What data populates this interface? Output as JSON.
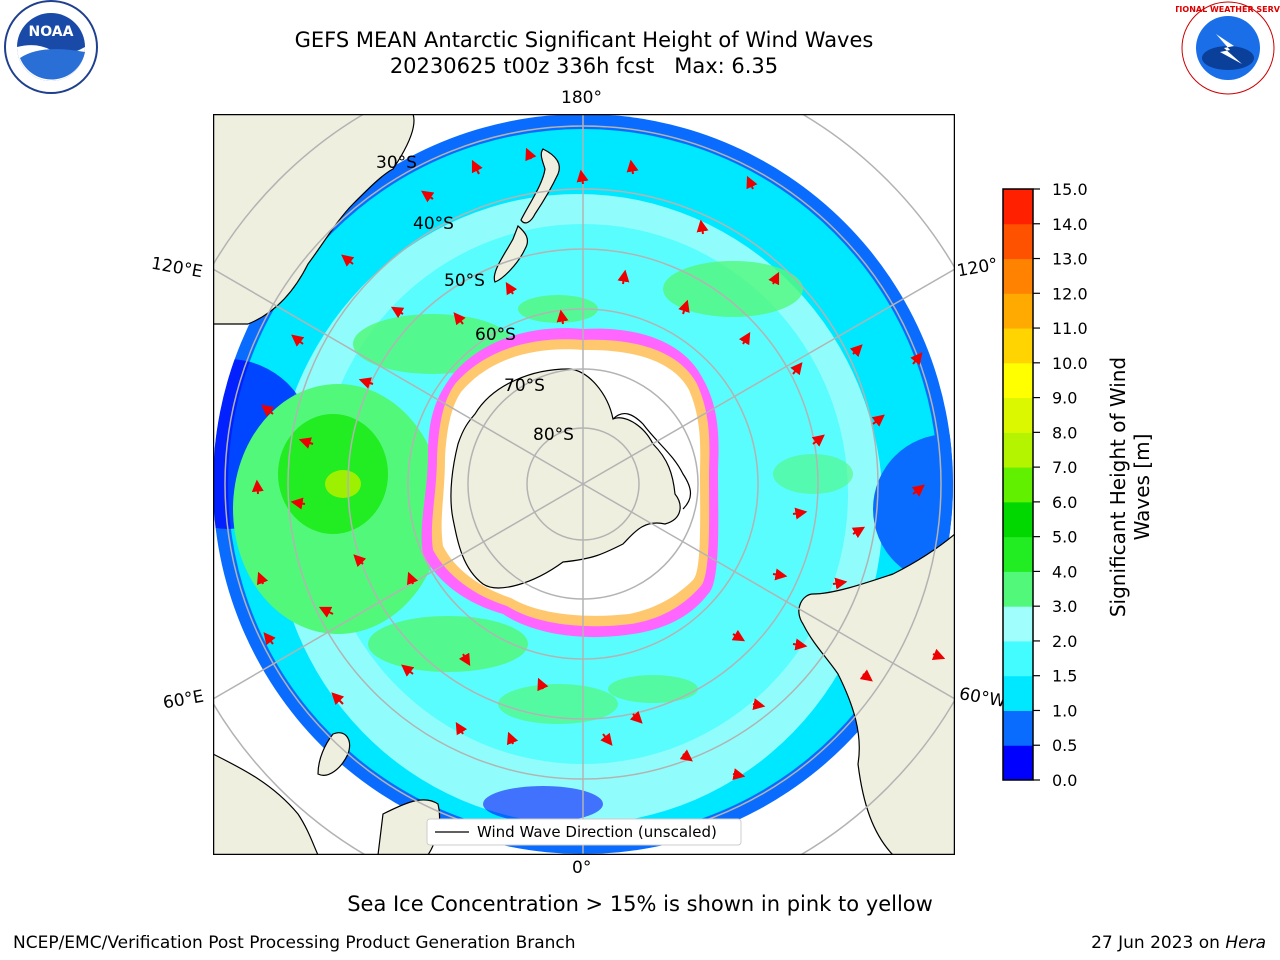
{
  "header": {
    "title_line1": "GEFS MEAN Antarctic Significant Height of Wind Waves",
    "title_line2": "20230625 t00z 336h fcst   Max: 6.35"
  },
  "logos": {
    "left": "NOAA",
    "right": "NATIONAL WEATHER SERVICE"
  },
  "map": {
    "lon_labels": {
      "top": "180°",
      "bottom": "0°",
      "upper_left": "120°E",
      "lower_left": "60°E",
      "upper_right": "120°",
      "lower_right": "60°W"
    },
    "lat_labels": [
      "30°S",
      "40°S",
      "50°S",
      "60°S",
      "70°S",
      "80°S"
    ],
    "legend_label": "Wind Wave Direction (unscaled)"
  },
  "colorbar": {
    "label_line1": "Significant Height of Wind",
    "label_line2": "Waves [m]",
    "ticks": [
      "0.0",
      "0.5",
      "1.0",
      "1.5",
      "2.0",
      "3.0",
      "4.0",
      "5.0",
      "6.0",
      "7.0",
      "8.0",
      "9.0",
      "10.0",
      "11.0",
      "12.0",
      "13.0",
      "14.0",
      "15.0"
    ],
    "colors": [
      "#0000ff",
      "#0a6cff",
      "#00e8ff",
      "#42fcff",
      "#a0fffc",
      "#52f87a",
      "#22ec22",
      "#00d800",
      "#60f000",
      "#b4f400",
      "#dcf800",
      "#ffff00",
      "#ffd400",
      "#ffaa00",
      "#ff8200",
      "#ff5200",
      "#ff2000"
    ],
    "ocean_colors": {
      "deep": "#0000ff",
      "blue": "#0a6cff",
      "cyan": "#00e8ff",
      "light_cyan": "#a0fffc",
      "green": "#52f87a",
      "bright_green": "#22ec22",
      "ice_pink": "#ff66ff",
      "ice_orange": "#ffc86e",
      "land": "#efefe0"
    }
  },
  "footer": {
    "note": "Sea Ice Concentration > 15% is shown in pink to yellow",
    "credit": "NCEP/EMC/Verification Post Processing Product Generation Branch",
    "date": "27 Jun 2023 on ",
    "host": "Hera"
  }
}
